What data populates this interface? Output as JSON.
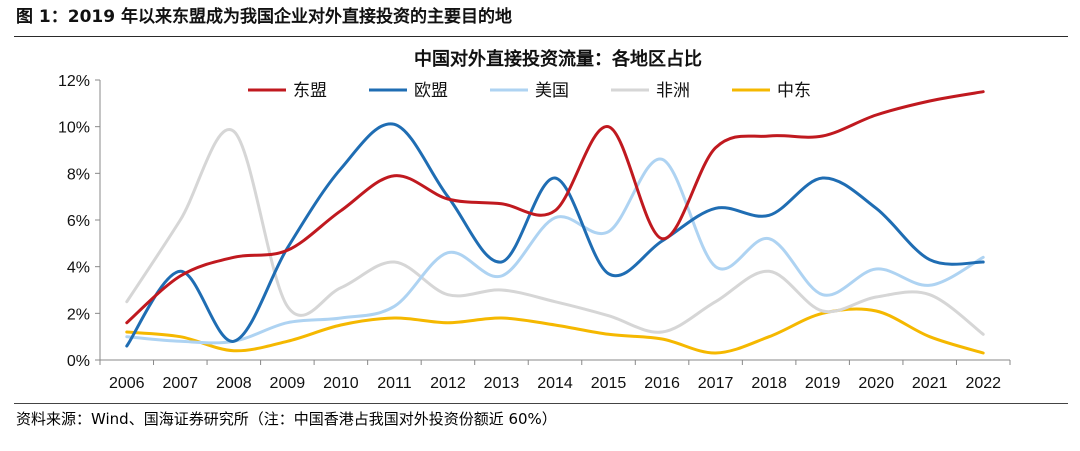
{
  "figure": {
    "title": "图 1：2019 年以来东盟成为我国企业对外直接投资的主要目的地",
    "source": "资料来源：Wind、国海证券研究所（注：中国香港占我国对外投资份额近 60%）"
  },
  "chart_data": {
    "type": "line",
    "title": "中国对外直接投资流量：各地区占比",
    "xlabel": "",
    "ylabel": "",
    "x": [
      "2006",
      "2007",
      "2008",
      "2009",
      "2010",
      "2011",
      "2012",
      "2013",
      "2014",
      "2015",
      "2016",
      "2017",
      "2018",
      "2019",
      "2020",
      "2021",
      "2022"
    ],
    "ylim": [
      0,
      12
    ],
    "y_ticks": [
      "0%",
      "2%",
      "4%",
      "6%",
      "8%",
      "10%",
      "12%"
    ],
    "y_tick_values": [
      0,
      2,
      4,
      6,
      8,
      10,
      12
    ],
    "grid": false,
    "legend_position": "top",
    "series": [
      {
        "name": "东盟",
        "color": "#c0191f",
        "values": [
          1.6,
          3.6,
          4.4,
          4.7,
          6.4,
          7.9,
          6.9,
          6.7,
          6.4,
          10.0,
          5.2,
          9.1,
          9.6,
          9.6,
          10.5,
          11.1,
          11.5
        ]
      },
      {
        "name": "欧盟",
        "color": "#1f6db3",
        "values": [
          0.6,
          3.8,
          0.8,
          4.8,
          8.2,
          10.1,
          7.0,
          4.2,
          7.8,
          3.7,
          5.1,
          6.5,
          6.2,
          7.8,
          6.5,
          4.3,
          4.2
        ]
      },
      {
        "name": "美国",
        "color": "#aed3f2",
        "values": [
          1.0,
          0.8,
          0.8,
          1.6,
          1.8,
          2.3,
          4.6,
          3.6,
          6.1,
          5.5,
          8.6,
          4.0,
          5.2,
          2.8,
          3.9,
          3.2,
          4.4
        ]
      },
      {
        "name": "非洲",
        "color": "#d6d6d6",
        "values": [
          2.5,
          6.0,
          9.8,
          2.3,
          3.1,
          4.2,
          2.8,
          3.0,
          2.5,
          1.9,
          1.2,
          2.5,
          3.8,
          2.1,
          2.7,
          2.8,
          1.1
        ]
      },
      {
        "name": "中东",
        "color": "#f5b800",
        "values": [
          1.2,
          1.0,
          0.4,
          0.8,
          1.5,
          1.8,
          1.6,
          1.8,
          1.5,
          1.1,
          0.9,
          0.3,
          1.0,
          2.0,
          2.1,
          1.0,
          0.3
        ]
      }
    ]
  }
}
